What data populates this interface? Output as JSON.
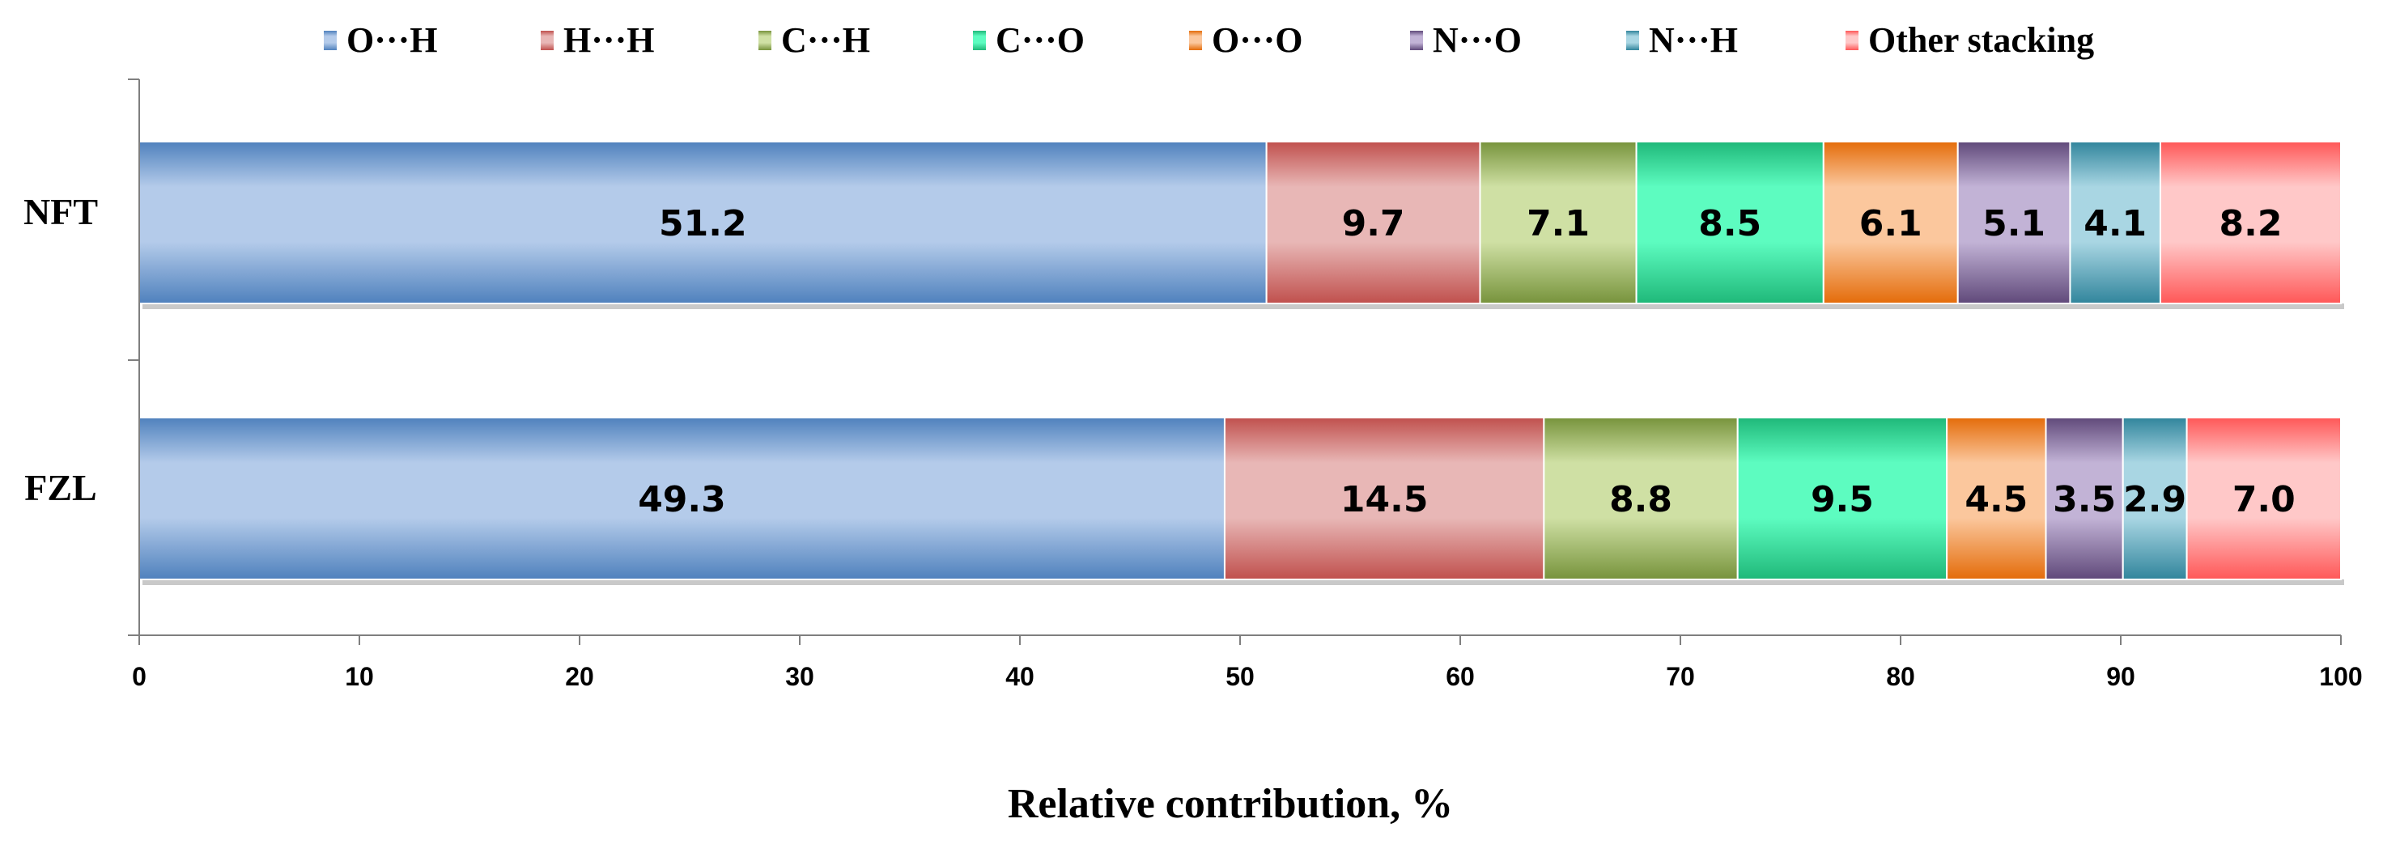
{
  "chart_data": {
    "type": "bar",
    "orientation": "horizontal",
    "stacked": true,
    "title": "",
    "xlabel": "Relative contribution, %",
    "ylabel": "",
    "xlim": [
      0,
      100
    ],
    "x_ticks": [
      "0",
      "10",
      "20",
      "30",
      "40",
      "50",
      "60",
      "70",
      "80",
      "90",
      "100"
    ],
    "categories": [
      "NFT",
      "FZL"
    ],
    "series": [
      {
        "name": "O···H",
        "color": "#4f81bd",
        "light": "#b4cbea",
        "values": [
          51.2,
          49.3
        ],
        "labels": [
          "51.2",
          "49.3"
        ]
      },
      {
        "name": "H···H",
        "color": "#c0504d",
        "light": "#e8b7b6",
        "values": [
          9.7,
          14.5
        ],
        "labels": [
          "9.7",
          "14.5"
        ]
      },
      {
        "name": "C···H",
        "color": "#77933c",
        "light": "#cfe0a4",
        "values": [
          7.1,
          8.8
        ],
        "labels": [
          "7.1",
          "8.8"
        ]
      },
      {
        "name": "C···O",
        "color": "#1fb879",
        "light": "#5dfcc0",
        "values": [
          8.5,
          9.5
        ],
        "labels": [
          "8.5",
          "9.5"
        ]
      },
      {
        "name": "O···O",
        "color": "#e46c0a",
        "light": "#fbc79d",
        "values": [
          6.1,
          4.5
        ],
        "labels": [
          "6.1",
          "4.5"
        ]
      },
      {
        "name": "N···O",
        "color": "#60497a",
        "light": "#c2b3d6",
        "values": [
          5.1,
          3.5
        ],
        "labels": [
          "5.1",
          "3.5"
        ]
      },
      {
        "name": "N···H",
        "color": "#31859c",
        "light": "#a9d6e3",
        "values": [
          4.1,
          2.9
        ],
        "labels": [
          "4.1",
          "2.9"
        ]
      },
      {
        "name": "Other stacking",
        "color": "#ff5757",
        "light": "#ffc8c8",
        "values": [
          8.2,
          7.0
        ],
        "labels": [
          "8.2",
          "7.0"
        ]
      }
    ],
    "legend_position": "top",
    "grid": false
  }
}
